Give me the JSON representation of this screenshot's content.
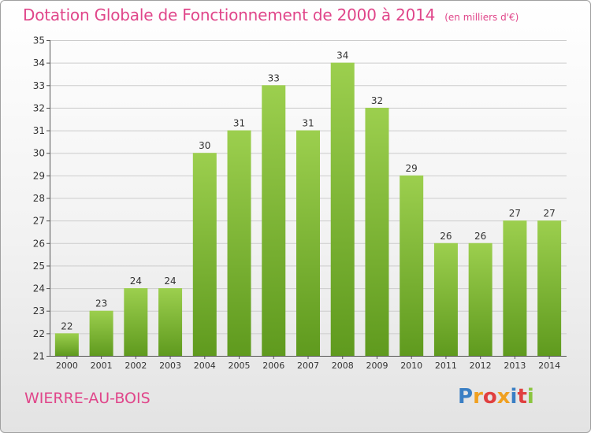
{
  "header": {
    "title": "Dotation Globale de Fonctionnement de 2000 à 2014",
    "unit_note": "(en milliers d'€)"
  },
  "footer": {
    "commune": "WIERRE-AU-BOIS",
    "brand": "Proxiti",
    "brand_letters": [
      {
        "char": "P",
        "color": "#3a7fc4"
      },
      {
        "char": "r",
        "color": "#f0a020"
      },
      {
        "char": "o",
        "color": "#e04040"
      },
      {
        "char": "x",
        "color": "#f0a020"
      },
      {
        "char": "i",
        "color": "#3a7fc4"
      },
      {
        "char": "t",
        "color": "#e04040"
      },
      {
        "char": "i",
        "color": "#8bc53f"
      }
    ]
  },
  "colors": {
    "accent": "#e0468a",
    "bar_top": "#9ccf4e",
    "bar_bottom": "#5f9a1e",
    "grid": "#cccccc",
    "axis": "#555555"
  },
  "chart_data": {
    "type": "bar",
    "title": "Dotation Globale de Fonctionnement de 2000 à 2014",
    "subtitle": "(en milliers d'€)",
    "xlabel": "",
    "ylabel": "",
    "categories": [
      "2000",
      "2001",
      "2002",
      "2003",
      "2004",
      "2005",
      "2006",
      "2007",
      "2008",
      "2009",
      "2010",
      "2011",
      "2012",
      "2013",
      "2014"
    ],
    "values": [
      22,
      23,
      24,
      24,
      30,
      31,
      33,
      31,
      34,
      32,
      29,
      26,
      26,
      27,
      27
    ],
    "ylim": [
      21,
      35
    ],
    "yticks": [
      21,
      22,
      23,
      24,
      25,
      26,
      27,
      28,
      29,
      30,
      31,
      32,
      33,
      34,
      35
    ],
    "grid": true,
    "data_labels": true
  }
}
